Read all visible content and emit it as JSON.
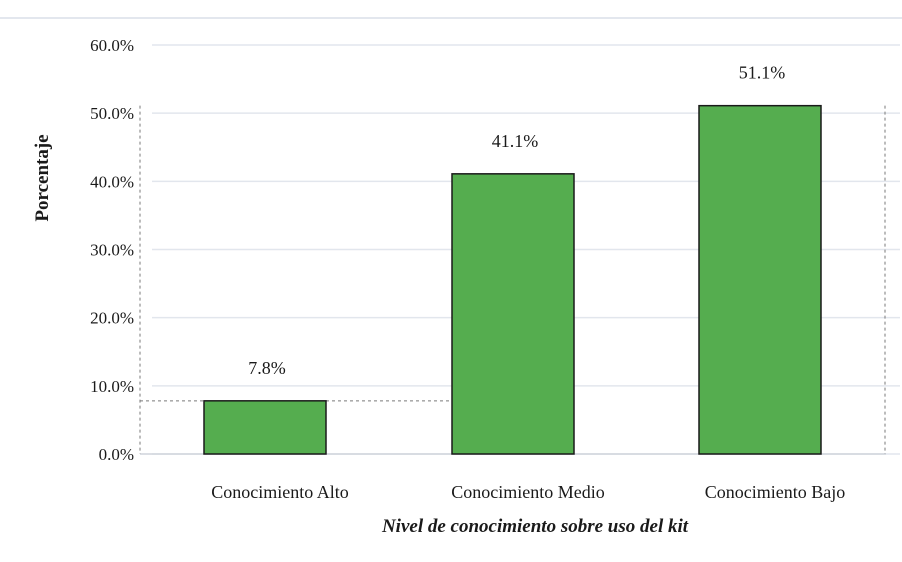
{
  "chart_data": {
    "type": "bar",
    "categories": [
      "Conocimiento Alto",
      "Conocimiento Medio",
      "Conocimiento Bajo"
    ],
    "values": [
      7.8,
      41.1,
      51.1
    ],
    "data_labels": [
      "7.8%",
      "41.1%",
      "51.1%"
    ],
    "xlabel": "Nivel de conocimiento sobre uso del kit",
    "ylabel": "Porcentaje",
    "ylim": [
      0,
      60
    ],
    "yticks": [
      0,
      10,
      20,
      30,
      40,
      50,
      60
    ],
    "ytick_labels": [
      "0.0%",
      "10.0%",
      "20.0%",
      "30.0%",
      "40.0%",
      "50.0%",
      "60.0%"
    ],
    "grid": true,
    "bar_color": "#55ad4f",
    "bar_edge_color": "#1a1a1a"
  }
}
